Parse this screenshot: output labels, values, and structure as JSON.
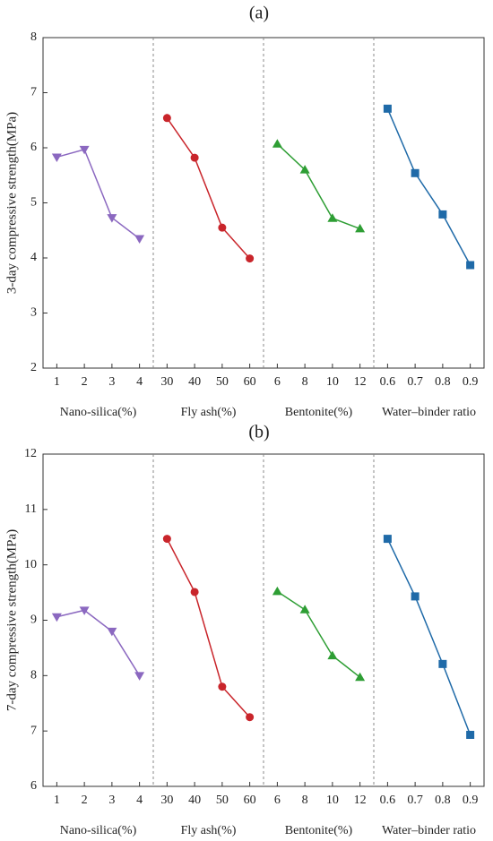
{
  "chart_data": [
    {
      "type": "line",
      "title": "(a)",
      "ylabel": "3-day compressive strength(MPa)",
      "ylim": [
        2,
        8
      ],
      "yticks": [
        2,
        3,
        4,
        5,
        6,
        7,
        8
      ],
      "groups": [
        {
          "label": "Nano-silica(%)",
          "categories": [
            "1",
            "2",
            "3",
            "4"
          ],
          "values": [
            5.83,
            5.97,
            4.73,
            4.35
          ],
          "color": "#8b68c0",
          "marker": "triangle-down"
        },
        {
          "label": "Fly ash(%)",
          "categories": [
            "30",
            "40",
            "50",
            "60"
          ],
          "values": [
            6.54,
            5.82,
            4.55,
            3.99
          ],
          "color": "#c9252b",
          "marker": "circle"
        },
        {
          "label": "Bentonite(%)",
          "categories": [
            "6",
            "8",
            "10",
            "12"
          ],
          "values": [
            6.07,
            5.6,
            4.72,
            4.53
          ],
          "color": "#2e9e34",
          "marker": "triangle-up"
        },
        {
          "label": "Water–binder ratio",
          "categories": [
            "0.6",
            "0.7",
            "0.8",
            "0.9"
          ],
          "values": [
            6.71,
            5.54,
            4.79,
            3.87
          ],
          "color": "#1f6aa8",
          "marker": "square"
        }
      ]
    },
    {
      "type": "line",
      "title": "(b)",
      "ylabel": "7-day compressive strength(MPa)",
      "ylim": [
        6,
        12
      ],
      "yticks": [
        6,
        7,
        8,
        9,
        10,
        11,
        12
      ],
      "groups": [
        {
          "label": "Nano-silica(%)",
          "categories": [
            "1",
            "2",
            "3",
            "4"
          ],
          "values": [
            9.06,
            9.18,
            8.8,
            8.0
          ],
          "color": "#8b68c0",
          "marker": "triangle-down"
        },
        {
          "label": "Fly ash(%)",
          "categories": [
            "30",
            "40",
            "50",
            "60"
          ],
          "values": [
            10.47,
            9.51,
            7.8,
            7.25
          ],
          "color": "#c9252b",
          "marker": "circle"
        },
        {
          "label": "Bentonite(%)",
          "categories": [
            "6",
            "8",
            "10",
            "12"
          ],
          "values": [
            9.52,
            9.19,
            8.36,
            7.97
          ],
          "color": "#2e9e34",
          "marker": "triangle-up"
        },
        {
          "label": "Water–binder ratio",
          "categories": [
            "0.6",
            "0.7",
            "0.8",
            "0.9"
          ],
          "values": [
            10.47,
            9.43,
            8.21,
            6.93
          ],
          "color": "#1f6aa8",
          "marker": "square"
        }
      ]
    }
  ]
}
